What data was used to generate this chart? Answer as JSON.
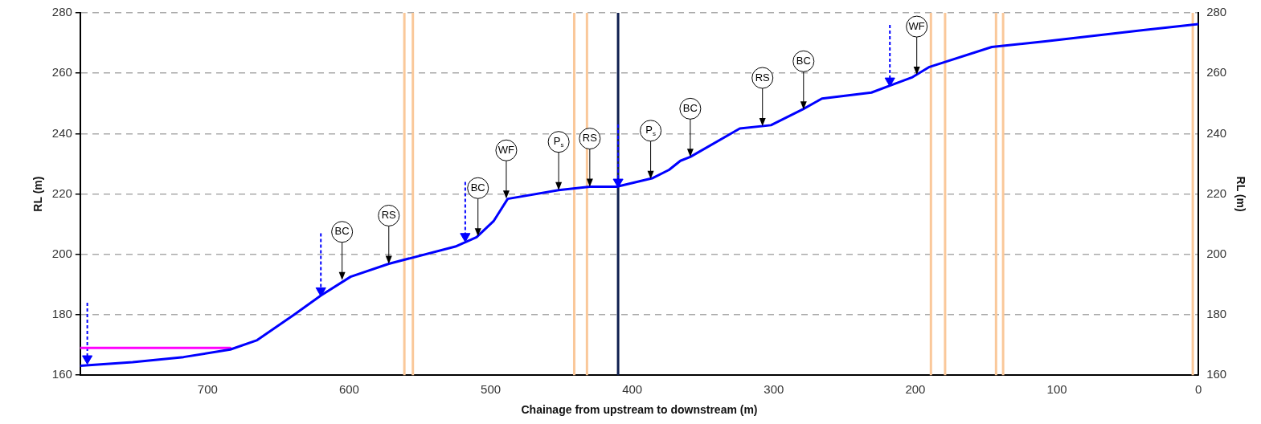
{
  "chart_data": {
    "type": "line",
    "xlabel": "Chainage from upstream to downstream (m)",
    "ylabel": "RL (m)",
    "y2label": "RL (m)",
    "xlim": [
      790,
      0
    ],
    "xticks": [
      700,
      600,
      500,
      400,
      300,
      200,
      100,
      0
    ],
    "ylim": [
      160,
      280
    ],
    "yticks": [
      160,
      180,
      200,
      220,
      240,
      260,
      280
    ],
    "y2lim": [
      160,
      280
    ],
    "y2ticks": [
      160,
      180,
      200,
      220,
      240,
      260,
      280
    ],
    "grid": "y",
    "legend": false,
    "series": [
      {
        "type": "line",
        "color": "#0000ff",
        "marker": "none",
        "x": [
          790,
          753,
          717,
          684,
          665,
          639,
          620,
          599,
          572,
          525,
          510,
          498,
          488,
          452,
          430,
          411,
          386,
          374,
          366,
          359,
          324,
          302,
          279,
          266,
          231,
          218,
          202,
          190,
          146,
          107,
          39,
          0
        ],
        "values": [
          163.1,
          164.3,
          166,
          168.5,
          171.6,
          180,
          186.4,
          192.6,
          196.9,
          202.6,
          205.7,
          211,
          218.4,
          221.3,
          222.4,
          222.4,
          225.2,
          228,
          231,
          232.3,
          241.7,
          242.8,
          248.2,
          251.6,
          253.6,
          255.9,
          258.7,
          262.1,
          268.7,
          270.6,
          274.3,
          276.3
        ]
      },
      {
        "type": "line",
        "color": "#ff00ff",
        "marker": "none",
        "x": [
          790,
          684
        ],
        "values": [
          169,
          169
        ]
      },
      {
        "type": "scatter",
        "color": "#0000ff",
        "marker": "triangle",
        "x": [
          785,
          620,
          518,
          410,
          218
        ],
        "values": [
          165.5,
          188,
          206,
          224,
          257.5
        ],
        "errors": [
          [
            165.5,
            184
          ],
          [
            188,
            207
          ],
          [
            206,
            224
          ],
          [
            224,
            243
          ],
          [
            257.5,
            276
          ]
        ]
      }
    ],
    "ref_lines": [
      {
        "axis": "x",
        "value": 561,
        "color": "#fac89a"
      },
      {
        "axis": "x",
        "value": 555,
        "color": "#fac89a"
      },
      {
        "axis": "x",
        "value": 441,
        "color": "#fac89a"
      },
      {
        "axis": "x",
        "value": 432,
        "color": "#fac89a"
      },
      {
        "axis": "x",
        "value": 410,
        "color": "#0f1f4f"
      },
      {
        "axis": "x",
        "value": 189,
        "color": "#fac89a"
      },
      {
        "axis": "x",
        "value": 179,
        "color": "#fac89a"
      },
      {
        "axis": "x",
        "value": 143,
        "color": "#fac89a"
      },
      {
        "axis": "x",
        "value": 138,
        "color": "#fac89a"
      },
      {
        "axis": "x",
        "value": 4,
        "color": "#fac89a"
      }
    ],
    "annotations": [
      {
        "text": "BC",
        "x": 605,
        "y": 191.5
      },
      {
        "text": "RS",
        "x": 572,
        "y": 196.9
      },
      {
        "text": "BC",
        "x": 509,
        "y": 206
      },
      {
        "text": "WF",
        "x": 489,
        "y": 218.5
      },
      {
        "text": "P$_{s}$",
        "x": 452,
        "y": 221.3
      },
      {
        "text": "RS",
        "x": 430,
        "y": 222.4
      },
      {
        "text": "P$_{s}$",
        "x": 387,
        "y": 225
      },
      {
        "text": "BC",
        "x": 359,
        "y": 232.3
      },
      {
        "text": "RS",
        "x": 308,
        "y": 242.5
      },
      {
        "text": "BC",
        "x": 279,
        "y": 248
      },
      {
        "text": "WF",
        "x": 199,
        "y": 259.5
      }
    ]
  }
}
